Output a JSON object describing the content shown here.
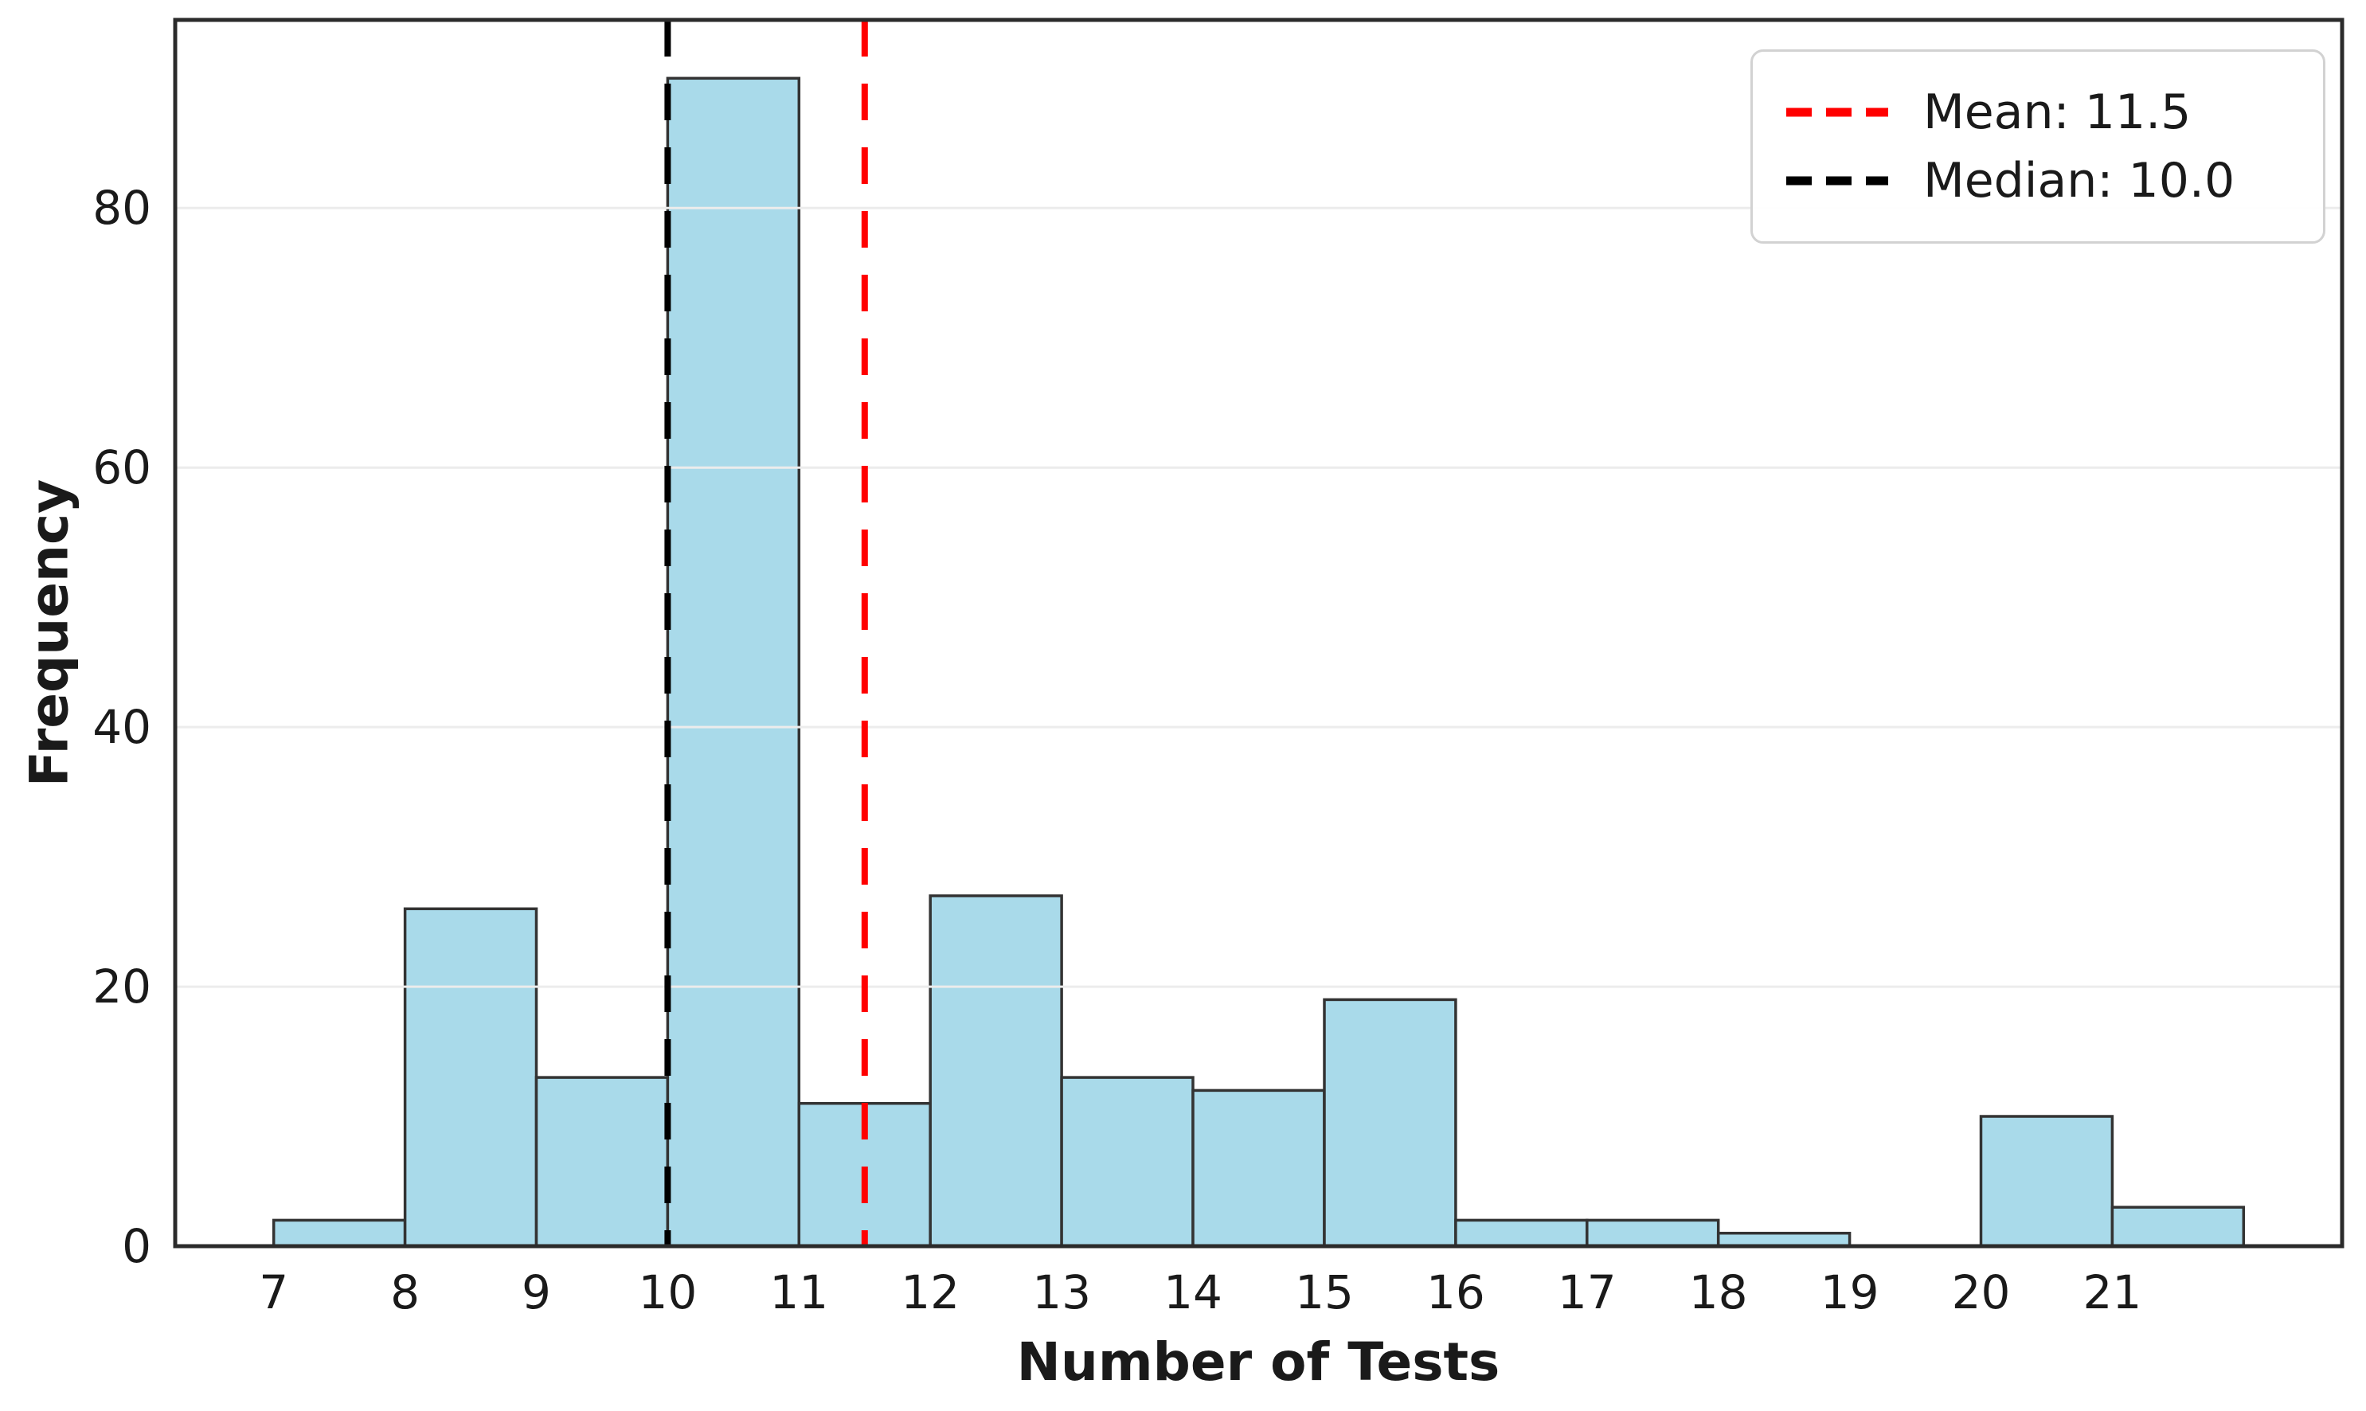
{
  "chart_data": {
    "type": "bar",
    "subtype": "histogram",
    "title": "",
    "xlabel": "Number of Tests",
    "ylabel": "Frequency",
    "bin_edges": [
      7,
      8,
      9,
      10,
      11,
      12,
      13,
      14,
      15,
      16,
      17,
      18,
      19,
      20,
      21,
      22
    ],
    "frequencies": [
      2,
      26,
      13,
      90,
      11,
      27,
      13,
      12,
      19,
      2,
      2,
      1,
      0,
      10,
      3
    ],
    "xticks": [
      7,
      8,
      9,
      10,
      11,
      12,
      13,
      14,
      15,
      16,
      17,
      18,
      19,
      20,
      21
    ],
    "yticks": [
      0,
      20,
      40,
      60,
      80
    ],
    "xlim": [
      6.25,
      22.75
    ],
    "ylim": [
      0,
      94.5
    ],
    "grid": "horizontal",
    "grid_above_bars": true,
    "legend_position": "upper right",
    "mean": {
      "value": 11.5,
      "label": "Mean: 11.5",
      "color": "#ff0000"
    },
    "median": {
      "value": 10.0,
      "label": "Median: 10.0",
      "color": "#000000"
    },
    "style": {
      "bar_fill": "#a9daea",
      "bar_edge": "#333333",
      "grid_color": "#ececec",
      "spine_color": "#2b2b2b",
      "text_color": "#1a1a1a",
      "background": "#ffffff"
    }
  }
}
